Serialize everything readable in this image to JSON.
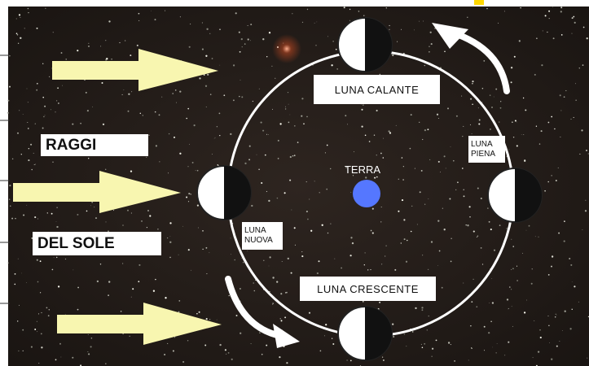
{
  "labels": {
    "rays_1": "RAGGI",
    "rays_2": "DEL SOLE",
    "earth": "TERRA"
  },
  "phases": {
    "waning": "LUNA CALANTE",
    "full": "LUNA PIENA",
    "new": "LUNA NUOVA",
    "waxing": "LUNA CRESCENTE"
  }
}
